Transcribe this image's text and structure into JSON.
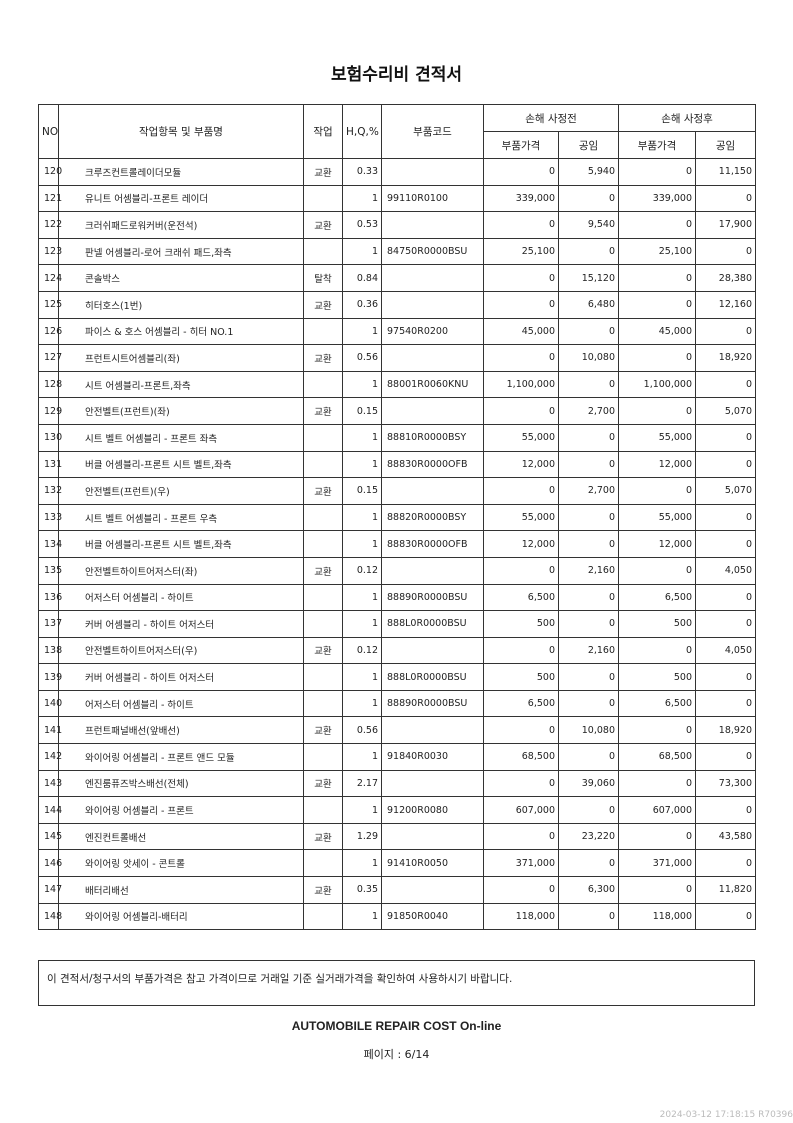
{
  "title": "보험수리비 견적서",
  "headers": {
    "no": "NO",
    "name": "작업항목 및 부품명",
    "work": "작업",
    "hq": "H,Q,%",
    "code": "부품코드",
    "before": "손해 사정전",
    "after": "손해 사정후",
    "part_price": "부품가격",
    "labor": "공임"
  },
  "rows": [
    [
      "120",
      "크루즈컨트롤레이더모듈",
      "교환",
      "0.33",
      "",
      "0",
      "5,940",
      "0",
      "11,150"
    ],
    [
      "121",
      "유니트 어셈블리-프론트 레이더",
      "",
      "1",
      "99110R0100",
      "339,000",
      "0",
      "339,000",
      "0"
    ],
    [
      "122",
      "크러쉬패드로워커버(운전석)",
      "교환",
      "0.53",
      "",
      "0",
      "9,540",
      "0",
      "17,900"
    ],
    [
      "123",
      "판넬 어셈블리-로어 크래쉬 패드,좌측",
      "",
      "1",
      "84750R0000BSU",
      "25,100",
      "0",
      "25,100",
      "0"
    ],
    [
      "124",
      "콘솔박스",
      "탈착",
      "0.84",
      "",
      "0",
      "15,120",
      "0",
      "28,380"
    ],
    [
      "125",
      "히터호스(1번)",
      "교환",
      "0.36",
      "",
      "0",
      "6,480",
      "0",
      "12,160"
    ],
    [
      "126",
      "파이스 & 호스 어셈블리 - 히터 NO.1",
      "",
      "1",
      "97540R0200",
      "45,000",
      "0",
      "45,000",
      "0"
    ],
    [
      "127",
      "프런트시트어셈블리(좌)",
      "교환",
      "0.56",
      "",
      "0",
      "10,080",
      "0",
      "18,920"
    ],
    [
      "128",
      "시트 어셈블리-프론트,좌측",
      "",
      "1",
      "88001R0060KNU",
      "1,100,000",
      "0",
      "1,100,000",
      "0"
    ],
    [
      "129",
      "안전벨트(프런트)(좌)",
      "교환",
      "0.15",
      "",
      "0",
      "2,700",
      "0",
      "5,070"
    ],
    [
      "130",
      "시트 벨트 어셈블리 - 프론트 좌측",
      "",
      "1",
      "88810R0000BSY",
      "55,000",
      "0",
      "55,000",
      "0"
    ],
    [
      "131",
      "버클 어셈블리-프론트 시트 벨트,좌측",
      "",
      "1",
      "88830R0000OFB",
      "12,000",
      "0",
      "12,000",
      "0"
    ],
    [
      "132",
      "안전벨트(프런트)(우)",
      "교환",
      "0.15",
      "",
      "0",
      "2,700",
      "0",
      "5,070"
    ],
    [
      "133",
      "시트 벨트 어셈블리 - 프론트 우측",
      "",
      "1",
      "88820R0000BSY",
      "55,000",
      "0",
      "55,000",
      "0"
    ],
    [
      "134",
      "버클 어셈블리-프론트 시트 벨트,좌측",
      "",
      "1",
      "88830R0000OFB",
      "12,000",
      "0",
      "12,000",
      "0"
    ],
    [
      "135",
      "안전벨트하이트어저스터(좌)",
      "교환",
      "0.12",
      "",
      "0",
      "2,160",
      "0",
      "4,050"
    ],
    [
      "136",
      "어저스터 어셈블리 - 하이트",
      "",
      "1",
      "88890R0000BSU",
      "6,500",
      "0",
      "6,500",
      "0"
    ],
    [
      "137",
      "커버 어셈블리 - 하이트 어저스터",
      "",
      "1",
      "888L0R0000BSU",
      "500",
      "0",
      "500",
      "0"
    ],
    [
      "138",
      "안전벨트하이트어저스터(우)",
      "교환",
      "0.12",
      "",
      "0",
      "2,160",
      "0",
      "4,050"
    ],
    [
      "139",
      "커버 어셈블리 - 하이트 어저스터",
      "",
      "1",
      "888L0R0000BSU",
      "500",
      "0",
      "500",
      "0"
    ],
    [
      "140",
      "어저스터 어셈블리 - 하이트",
      "",
      "1",
      "88890R0000BSU",
      "6,500",
      "0",
      "6,500",
      "0"
    ],
    [
      "141",
      "프런트패널배선(앞배선)",
      "교환",
      "0.56",
      "",
      "0",
      "10,080",
      "0",
      "18,920"
    ],
    [
      "142",
      "와이어링 어셈블리 - 프론트 앤드 모듈",
      "",
      "1",
      "91840R0030",
      "68,500",
      "0",
      "68,500",
      "0"
    ],
    [
      "143",
      "엔진룸퓨즈박스배선(전체)",
      "교환",
      "2.17",
      "",
      "0",
      "39,060",
      "0",
      "73,300"
    ],
    [
      "144",
      "와이어링 어셈블리 - 프론트",
      "",
      "1",
      "91200R0080",
      "607,000",
      "0",
      "607,000",
      "0"
    ],
    [
      "145",
      "엔진컨트롤배선",
      "교환",
      "1.29",
      "",
      "0",
      "23,220",
      "0",
      "43,580"
    ],
    [
      "146",
      "와이어링 앗세이 - 콘트롤",
      "",
      "1",
      "91410R0050",
      "371,000",
      "0",
      "371,000",
      "0"
    ],
    [
      "147",
      "배터리배선",
      "교환",
      "0.35",
      "",
      "0",
      "6,300",
      "0",
      "11,820"
    ],
    [
      "148",
      "와이어링 어셈블리-배터리",
      "",
      "1",
      "91850R0040",
      "118,000",
      "0",
      "118,000",
      "0"
    ]
  ],
  "notice": "이 견적서/청구서의 부품가격은 참고 가격이므로 거래일 기준 실거래가격을 확인하여 사용하시기 바랍니다.",
  "footer": "AUTOMOBILE REPAIR COST On-line",
  "page": "페이지 : 6/14",
  "stamp": "2024-03-12 17:18:15 R70396"
}
